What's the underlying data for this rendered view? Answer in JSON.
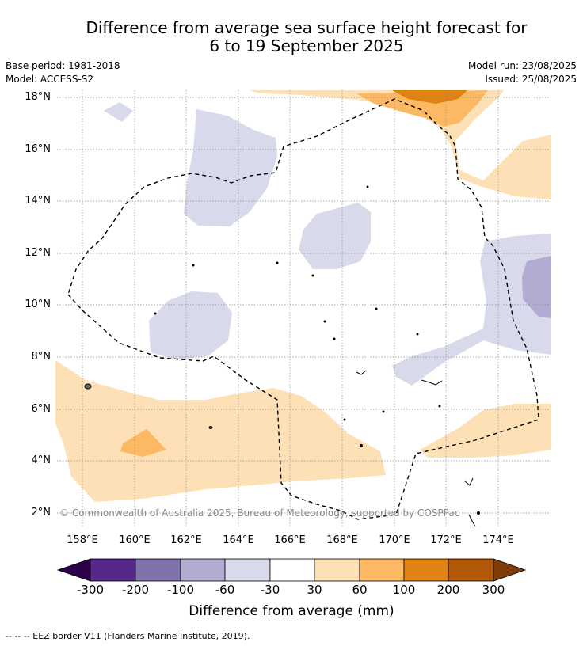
{
  "header": {
    "title_line1": "Difference from average sea surface height forecast for",
    "title_line2": "6 to 19 September 2025",
    "base_period": "Base period: 1981-2018",
    "model": "Model: ACCESS-S2",
    "model_run": "Model run: 23/08/2025",
    "issued": "Issued: 25/08/2025"
  },
  "map": {
    "lat_labels": [
      "18°N",
      "16°N",
      "14°N",
      "12°N",
      "10°N",
      "8°N",
      "6°N",
      "4°N",
      "2°N"
    ],
    "lon_labels": [
      "158°E",
      "160°E",
      "162°E",
      "164°E",
      "166°E",
      "168°E",
      "170°E",
      "172°E",
      "174°E"
    ],
    "copyright": "© Commonwealth of Australia 2025, Bureau of Meteorology, supported by COSPPac"
  },
  "colorbar": {
    "tick_labels": [
      "-300",
      "-200",
      "-100",
      "-60",
      "-30",
      "30",
      "60",
      "100",
      "200",
      "300"
    ],
    "colors": [
      "#2d004b",
      "#542788",
      "#8073ac",
      "#b2abd2",
      "#d8daeb",
      "#ffffff",
      "#fee0b6",
      "#fdb863",
      "#e08214",
      "#b35806",
      "#7f3b08"
    ],
    "title": "Difference from average (mm)"
  },
  "legend": {
    "eez_text": "--  --  -- EEZ border V11 (Flanders Marine Institute, 2019)."
  }
}
